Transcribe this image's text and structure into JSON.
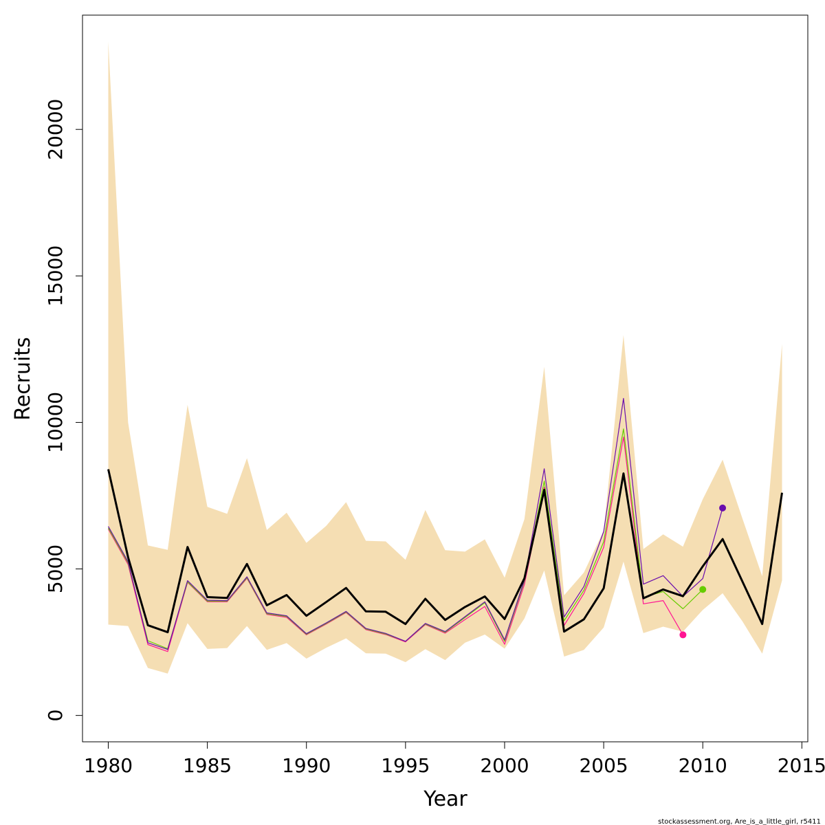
{
  "chart_data": {
    "type": "line",
    "xlabel": "Year",
    "ylabel": "Recruits",
    "xlim": [
      1978.7,
      2015.3
    ],
    "ylim": [
      -900,
      23900
    ],
    "x_ticks": [
      1980,
      1985,
      1990,
      1995,
      2000,
      2005,
      2010,
      2015
    ],
    "y_ticks": [
      0,
      5000,
      10000,
      15000,
      20000
    ],
    "x_tick_labels": [
      "1980",
      "1985",
      "1990",
      "1995",
      "2000",
      "2005",
      "2010",
      "2015"
    ],
    "y_tick_labels": [
      "0",
      "5000",
      "10000",
      "15000",
      "20000"
    ],
    "band": {
      "color": "#f5deb3",
      "x": [
        1980,
        1981,
        1982,
        1983,
        1984,
        1985,
        1986,
        1987,
        1988,
        1989,
        1990,
        1991,
        1992,
        1993,
        1994,
        1995,
        1996,
        1997,
        1998,
        1999,
        2000,
        2001,
        2002,
        2003,
        2004,
        2005,
        2006,
        2007,
        2008,
        2009,
        2010,
        2011,
        2012,
        2013,
        2014
      ],
      "upper": [
        23000,
        10000,
        5800,
        5650,
        10600,
        7120,
        6880,
        8780,
        6330,
        6920,
        5890,
        6470,
        7280,
        5960,
        5940,
        5310,
        7010,
        5640,
        5590,
        6010,
        4700,
        6700,
        11900,
        4100,
        4880,
        6310,
        12980,
        5680,
        6180,
        5760,
        7380,
        8730,
        6720,
        4750,
        12680
      ],
      "lower": [
        3100,
        3050,
        1620,
        1430,
        3150,
        2270,
        2300,
        3050,
        2240,
        2470,
        1940,
        2310,
        2630,
        2120,
        2110,
        1820,
        2260,
        1890,
        2480,
        2760,
        2280,
        3310,
        4950,
        2010,
        2240,
        3000,
        5250,
        2810,
        3030,
        2860,
        3600,
        4170,
        3210,
        2110,
        4610
      ]
    },
    "series": [
      {
        "color": "#000000",
        "x": [
          1980,
          1981,
          1982,
          1983,
          1984,
          1985,
          1986,
          1987,
          1988,
          1989,
          1990,
          1991,
          1992,
          1993,
          1994,
          1995,
          1996,
          1997,
          1998,
          1999,
          2000,
          2001,
          2002,
          2003,
          2004,
          2005,
          2006,
          2007,
          2008,
          2009,
          2010,
          2011,
          2012,
          2013,
          2014
        ],
        "values": [
          8400,
          5400,
          3080,
          2840,
          5750,
          4040,
          4010,
          5170,
          3760,
          4110,
          3400,
          3870,
          4350,
          3550,
          3540,
          3120,
          3980,
          3260,
          3700,
          4060,
          3290,
          4680,
          7700,
          2860,
          3280,
          4340,
          8260,
          4000,
          4300,
          4070,
          5090,
          6020,
          4570,
          3120,
          7600
        ]
      },
      {
        "color": "#6a0dad",
        "x": [
          1980,
          1981,
          1982,
          1983,
          1984,
          1985,
          1986,
          1987,
          1988,
          1989,
          1990,
          1991,
          1992,
          1993,
          1994,
          1995,
          1996,
          1997,
          1998,
          1999,
          2000,
          2001,
          2002,
          2003,
          2004,
          2005,
          2006,
          2007,
          2008,
          2009,
          2010,
          2011
        ],
        "values": [
          6450,
          5250,
          2480,
          2250,
          4600,
          3930,
          3920,
          4730,
          3500,
          3400,
          2790,
          3160,
          3550,
          2970,
          2800,
          2530,
          3140,
          2860,
          3370,
          3880,
          2580,
          4620,
          8420,
          3360,
          4400,
          6280,
          10820,
          4480,
          4770,
          4060,
          4670,
          7080
        ]
      },
      {
        "color": "#66cc00",
        "x": [
          1980,
          1981,
          1982,
          1983,
          1984,
          1985,
          1986,
          1987,
          1988,
          1989,
          1990,
          1991,
          1992,
          1993,
          1994,
          1995,
          1996,
          1997,
          1998,
          1999,
          2000,
          2001,
          2002,
          2003,
          2004,
          2005,
          2006,
          2007,
          2008,
          2009,
          2010
        ],
        "values": [
          6400,
          5200,
          2550,
          2280,
          4560,
          3900,
          3900,
          4700,
          3470,
          3380,
          2770,
          3140,
          3530,
          2950,
          2780,
          2530,
          3120,
          2840,
          3340,
          3850,
          2530,
          4580,
          8000,
          3230,
          4270,
          5930,
          9780,
          4030,
          4230,
          3640,
          4300
        ]
      },
      {
        "color": "#ff1493",
        "x": [
          1980,
          1981,
          1982,
          1983,
          1984,
          1985,
          1986,
          1987,
          1988,
          1989,
          1990,
          1991,
          1992,
          1993,
          1994,
          1995,
          1996,
          1997,
          1998,
          1999,
          2000,
          2001,
          2002,
          2003,
          2004,
          2005,
          2006,
          2007,
          2008,
          2009
        ],
        "values": [
          6360,
          5150,
          2420,
          2180,
          4540,
          3880,
          3880,
          4680,
          3450,
          3350,
          2750,
          3120,
          3510,
          2930,
          2760,
          2510,
          3100,
          2810,
          3270,
          3720,
          2430,
          4470,
          7790,
          3070,
          4160,
          5740,
          9500,
          3810,
          3920,
          2750
        ]
      }
    ],
    "end_points": [
      {
        "x": 2011,
        "y": 7080,
        "color": "#6a0dad"
      },
      {
        "x": 2010,
        "y": 4300,
        "color": "#66cc00"
      },
      {
        "x": 2009,
        "y": 2750,
        "color": "#ff1493"
      }
    ],
    "credit": "stockassessment.org, Are_is_a_little_girl, r5411"
  }
}
